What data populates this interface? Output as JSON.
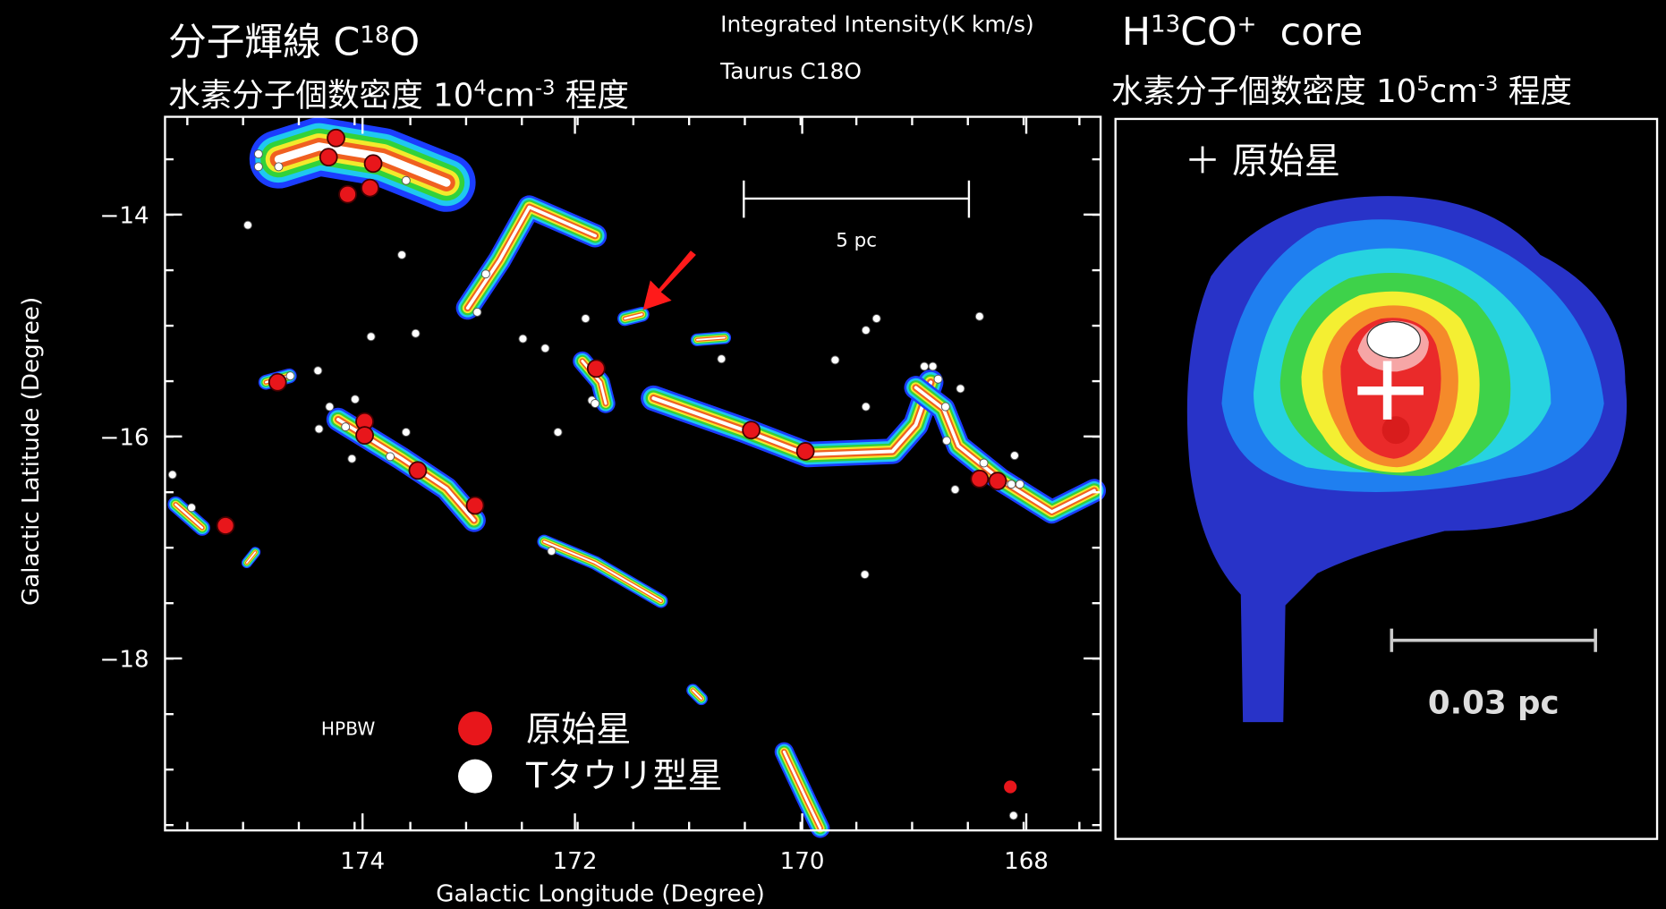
{
  "left_panel": {
    "title": [
      "分子輝線 C",
      "18",
      "O"
    ],
    "subtitle": [
      "水素分子個数密度 10",
      "4",
      "cm",
      "-3",
      " 程度"
    ],
    "header": [
      "Integrated Intensity(K km/s)",
      "Taurus C18O"
    ],
    "x_axis": {
      "label": "Galactic Longitude (Degree)",
      "ticks": [
        "174",
        "172",
        "170",
        "168"
      ]
    },
    "y_axis": {
      "label": "Galactic Latitude (Degree)",
      "ticks": [
        "−14",
        "−16",
        "−18"
      ]
    },
    "scale_bar": "5 pc",
    "beam": "HPBW",
    "legend": [
      "原始星",
      "Tタウリ型星"
    ]
  },
  "right_panel": {
    "title": [
      "H",
      "13",
      "CO",
      "+",
      "core"
    ],
    "subtitle": [
      "水素分子個数密度 10",
      "5",
      "cm",
      "-3",
      " 程度"
    ],
    "marker_legend": "＋ 原始星",
    "scale_bar": "0.03 pc"
  }
}
